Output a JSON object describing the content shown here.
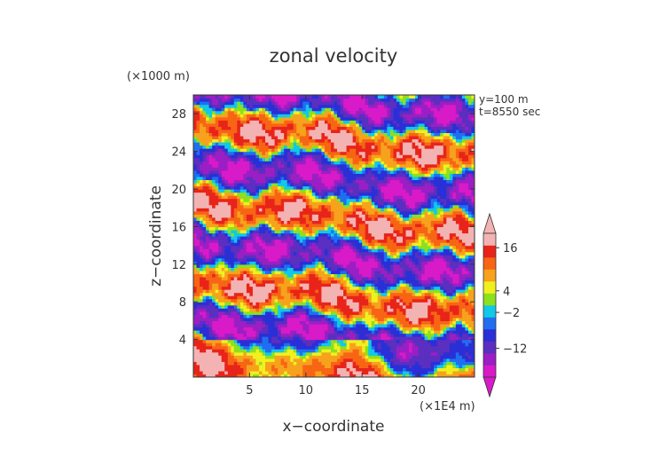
{
  "chart_data": {
    "type": "heatmap",
    "title": "zonal velocity",
    "xlabel": "x−coordinate",
    "ylabel": "z−coordinate",
    "x_unit": "(×1E4 m)",
    "y_unit": "(×1000 m)",
    "annotations": [
      "y=100 m",
      "t=8550 sec"
    ],
    "xlim": [
      0,
      25
    ],
    "ylim": [
      0,
      30
    ],
    "x_ticks": [
      5,
      10,
      15,
      20
    ],
    "y_ticks": [
      4,
      8,
      12,
      16,
      20,
      24,
      28
    ],
    "colorbar": {
      "levels": [
        -20,
        -16,
        -12,
        -8,
        -4,
        -2,
        0,
        2,
        4,
        8,
        12,
        16,
        20
      ],
      "tick_labels": [
        "16",
        "4",
        "−2",
        "−12"
      ],
      "tick_values": [
        16,
        4,
        -2,
        -12
      ],
      "colors": [
        "#d81ac8",
        "#9b1fc4",
        "#5b2fc0",
        "#2b2fd6",
        "#1f6ff0",
        "#12c8e8",
        "#8ce01e",
        "#f0f020",
        "#f7a21d",
        "#f76515",
        "#e8241a",
        "#f4b3b3"
      ]
    },
    "grid": false
  }
}
